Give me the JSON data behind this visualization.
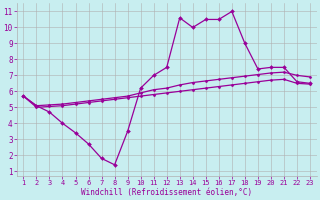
{
  "xlabel": "Windchill (Refroidissement éolien,°C)",
  "x": [
    1,
    2,
    3,
    4,
    5,
    6,
    7,
    8,
    9,
    10,
    11,
    12,
    13,
    14,
    15,
    16,
    17,
    18,
    19,
    20,
    21,
    22,
    23
  ],
  "main_y": [
    5.7,
    5.1,
    4.7,
    4.0,
    3.4,
    2.7,
    1.8,
    1.4,
    3.5,
    6.2,
    7.0,
    7.5,
    10.6,
    10.0,
    10.5,
    10.5,
    11.0,
    9.0,
    7.4,
    7.5,
    7.5,
    6.6,
    6.5
  ],
  "upper_y": [
    5.7,
    5.1,
    5.15,
    5.2,
    5.3,
    5.4,
    5.5,
    5.6,
    5.7,
    5.9,
    6.1,
    6.2,
    6.4,
    6.55,
    6.65,
    6.75,
    6.85,
    6.95,
    7.05,
    7.15,
    7.2,
    7.0,
    6.9
  ],
  "lower_y": [
    5.7,
    5.0,
    5.05,
    5.1,
    5.2,
    5.3,
    5.4,
    5.5,
    5.6,
    5.7,
    5.8,
    5.9,
    6.0,
    6.1,
    6.2,
    6.3,
    6.4,
    6.5,
    6.6,
    6.7,
    6.75,
    6.5,
    6.45
  ],
  "curve_color": "#990099",
  "bg_color": "#c8eef0",
  "grid_color": "#b0b0b0",
  "ylim": [
    0.7,
    11.5
  ],
  "yticks": [
    1,
    2,
    3,
    4,
    5,
    6,
    7,
    8,
    9,
    10,
    11
  ],
  "xticks": [
    1,
    2,
    3,
    4,
    5,
    6,
    7,
    8,
    9,
    10,
    11,
    12,
    13,
    14,
    15,
    16,
    17,
    18,
    19,
    20,
    21,
    22,
    23
  ],
  "xlabel_color": "#990099",
  "tick_color": "#990099",
  "marker": "D",
  "markersize": 2.0,
  "linewidth": 0.9,
  "band_linewidth": 0.9,
  "band_markersize": 1.5
}
